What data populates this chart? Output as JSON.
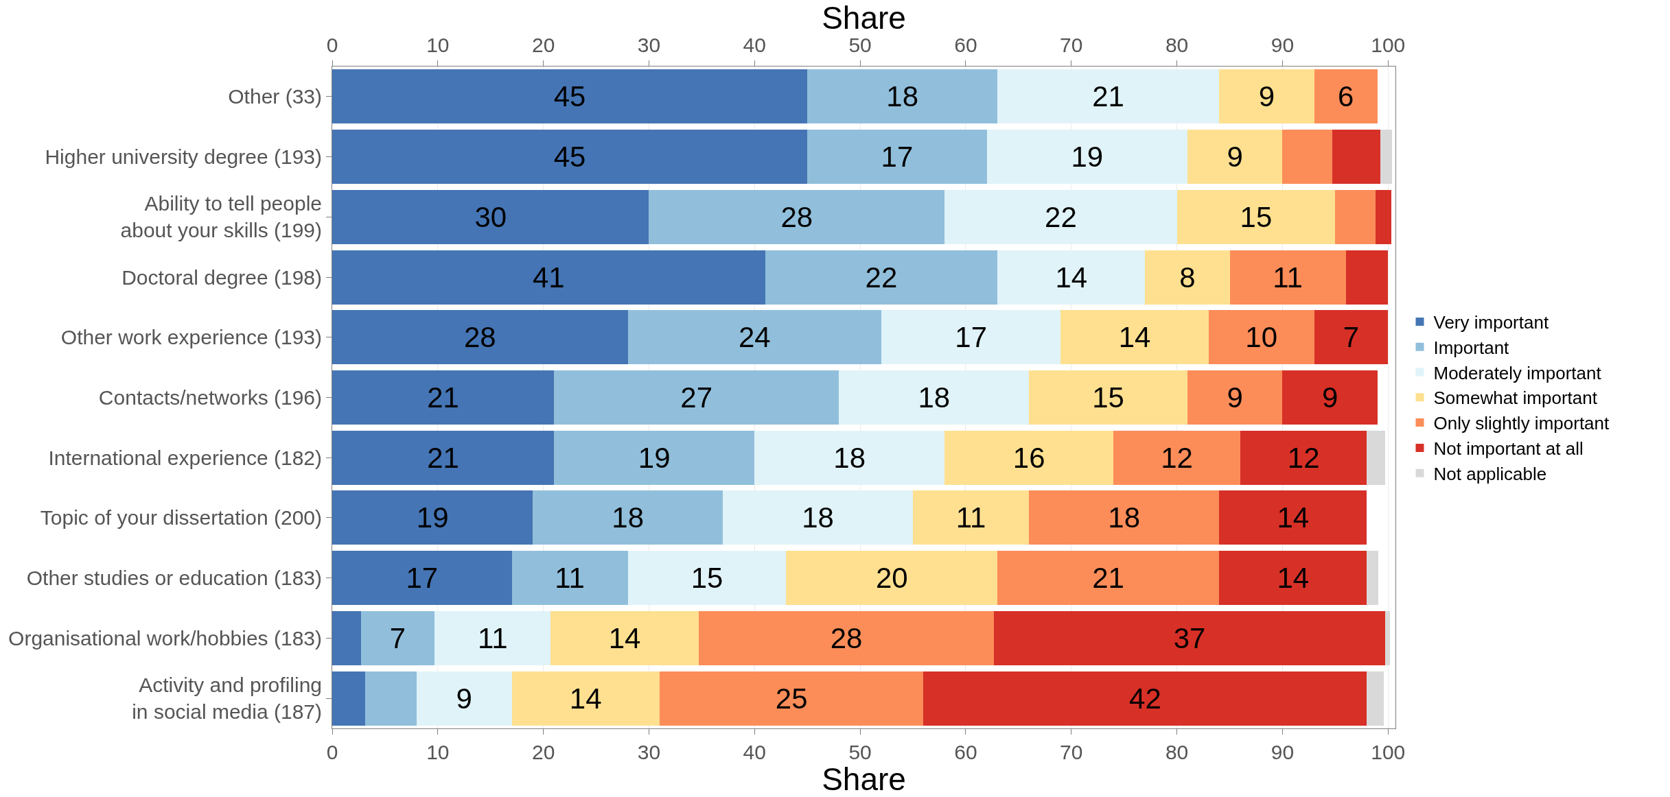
{
  "chart_data": {
    "type": "bar",
    "orientation": "horizontal",
    "stacked": true,
    "xlabel": "Share",
    "x2label": "Share",
    "categories": [
      "Other (33)",
      "Higher university degree (193)",
      "Ability to tell people\nabout your skills (199)",
      "Doctoral degree (198)",
      "Other work experience (193)",
      "Contacts/networks (196)",
      "International experience (182)",
      "Topic of your dissertation (200)",
      "Other studies or education (183)",
      "Organisational work/hobbies (183)",
      "Activity and profiling\nin social media (187)"
    ],
    "series": [
      {
        "name": "Very important",
        "color": "#4575b4",
        "values": [
          45,
          45,
          30,
          41,
          28,
          21,
          21,
          19,
          17,
          2.7,
          3.1
        ],
        "value_labels": [
          "45",
          "45",
          "30",
          "41",
          "28",
          "21",
          "21",
          "19",
          "17",
          null,
          null
        ]
      },
      {
        "name": "Important",
        "color": "#91bfdb",
        "values": [
          18,
          17,
          28,
          22,
          24,
          27,
          19,
          18,
          11,
          7,
          4.9
        ],
        "value_labels": [
          "18",
          "17",
          "28",
          "22",
          "24",
          "27",
          "19",
          "18",
          "11",
          "7",
          null
        ]
      },
      {
        "name": "Moderately important",
        "color": "#e0f3f8",
        "values": [
          21,
          19,
          22,
          14,
          17,
          18,
          18,
          18,
          15,
          11,
          9
        ],
        "value_labels": [
          "21",
          "19",
          "22",
          "14",
          "17",
          "18",
          "18",
          "18",
          "15",
          "11",
          "9"
        ]
      },
      {
        "name": "Somewhat important",
        "color": "#fee090",
        "values": [
          9,
          9,
          15,
          8,
          14,
          15,
          16,
          11,
          20,
          14,
          14
        ],
        "value_labels": [
          "9",
          "9",
          "15",
          "8",
          "14",
          "15",
          "16",
          "11",
          "20",
          "14",
          "14"
        ]
      },
      {
        "name": "Only slightly important",
        "color": "#fc8d59",
        "values": [
          6,
          4.7,
          3.8,
          11,
          10,
          9,
          12,
          18,
          21,
          28,
          25
        ],
        "value_labels": [
          "6",
          null,
          null,
          "11",
          "10",
          "9",
          "12",
          "18",
          "21",
          "28",
          "25"
        ]
      },
      {
        "name": "Not important at all",
        "color": "#d73027",
        "values": [
          null,
          4.6,
          1.5,
          4.0,
          7,
          9,
          12,
          14,
          14,
          37,
          42
        ],
        "value_labels": [
          null,
          null,
          null,
          null,
          "7",
          "9",
          "12",
          "14",
          "14",
          "37",
          "42"
        ]
      },
      {
        "name": "Not applicable",
        "color": "#d9d9d9",
        "values": [
          null,
          1.1,
          null,
          null,
          null,
          null,
          1.7,
          null,
          1.1,
          0.5,
          1.6
        ],
        "value_labels": [
          null,
          null,
          null,
          null,
          null,
          null,
          null,
          null,
          null,
          null,
          null
        ]
      }
    ],
    "xlim": [
      0,
      100.7
    ],
    "xticks": [
      0,
      10,
      20,
      30,
      40,
      50,
      60,
      70,
      80,
      90,
      100
    ],
    "x2lim": [
      0,
      100.7
    ],
    "x2ticks": [
      0,
      10,
      20,
      30,
      40,
      50,
      60,
      70,
      80,
      90,
      100
    ],
    "grid": "x",
    "legend": "right"
  }
}
